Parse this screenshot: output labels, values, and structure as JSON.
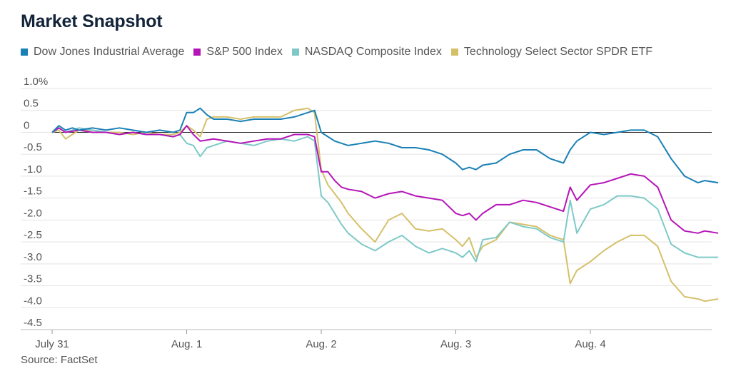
{
  "title": "Market Snapshot",
  "source": "Source: FactSet",
  "chart_data": {
    "type": "line",
    "ylim": [
      -4.5,
      1.0
    ],
    "y_ticks": [
      "1.0%",
      "0.5",
      "0",
      "-0.5",
      "-1.0",
      "-1.5",
      "-2.0",
      "-2.5",
      "-3.0",
      "-3.5",
      "-4.0",
      "-4.5"
    ],
    "y_tick_values": [
      1.0,
      0.5,
      0,
      -0.5,
      -1.0,
      -1.5,
      -2.0,
      -2.5,
      -3.0,
      -3.5,
      -4.0,
      -4.5
    ],
    "x_ticks": [
      "July 31",
      "Aug. 1",
      "Aug. 2",
      "Aug. 3",
      "Aug. 4"
    ],
    "x_range": [
      0,
      5
    ],
    "grid": "horizontal",
    "legend_position": "top-left",
    "series": [
      {
        "name": "Dow Jones Industrial Average",
        "color": "#1a80b6",
        "points": [
          [
            0,
            0
          ],
          [
            0.05,
            0.15
          ],
          [
            0.1,
            0.05
          ],
          [
            0.15,
            0.1
          ],
          [
            0.2,
            0.05
          ],
          [
            0.3,
            0.1
          ],
          [
            0.4,
            0.05
          ],
          [
            0.5,
            0.1
          ],
          [
            0.6,
            0.05
          ],
          [
            0.7,
            0.0
          ],
          [
            0.8,
            0.05
          ],
          [
            0.9,
            0.0
          ],
          [
            0.95,
            0.05
          ],
          [
            1.0,
            0.45
          ],
          [
            1.05,
            0.45
          ],
          [
            1.1,
            0.55
          ],
          [
            1.15,
            0.4
          ],
          [
            1.2,
            0.3
          ],
          [
            1.3,
            0.3
          ],
          [
            1.4,
            0.25
          ],
          [
            1.5,
            0.3
          ],
          [
            1.6,
            0.3
          ],
          [
            1.7,
            0.3
          ],
          [
            1.8,
            0.35
          ],
          [
            1.9,
            0.45
          ],
          [
            1.95,
            0.5
          ],
          [
            2.0,
            0.0
          ],
          [
            2.05,
            -0.1
          ],
          [
            2.1,
            -0.2
          ],
          [
            2.2,
            -0.3
          ],
          [
            2.3,
            -0.25
          ],
          [
            2.4,
            -0.2
          ],
          [
            2.5,
            -0.25
          ],
          [
            2.6,
            -0.35
          ],
          [
            2.7,
            -0.35
          ],
          [
            2.8,
            -0.4
          ],
          [
            2.9,
            -0.5
          ],
          [
            3.0,
            -0.7
          ],
          [
            3.05,
            -0.85
          ],
          [
            3.1,
            -0.8
          ],
          [
            3.15,
            -0.85
          ],
          [
            3.2,
            -0.75
          ],
          [
            3.3,
            -0.7
          ],
          [
            3.4,
            -0.5
          ],
          [
            3.5,
            -0.4
          ],
          [
            3.6,
            -0.4
          ],
          [
            3.7,
            -0.6
          ],
          [
            3.8,
            -0.7
          ],
          [
            3.85,
            -0.4
          ],
          [
            3.9,
            -0.2
          ],
          [
            4.0,
            0.0
          ],
          [
            4.1,
            -0.05
          ],
          [
            4.2,
            0.0
          ],
          [
            4.3,
            0.05
          ],
          [
            4.4,
            0.05
          ],
          [
            4.5,
            -0.1
          ],
          [
            4.6,
            -0.6
          ],
          [
            4.7,
            -1.0
          ],
          [
            4.8,
            -1.15
          ],
          [
            4.85,
            -1.1
          ],
          [
            4.95,
            -1.15
          ]
        ]
      },
      {
        "name": "S&P 500 Index",
        "color": "#b515b8",
        "points": [
          [
            0,
            0
          ],
          [
            0.05,
            0.1
          ],
          [
            0.1,
            0.0
          ],
          [
            0.2,
            0.05
          ],
          [
            0.3,
            0.0
          ],
          [
            0.4,
            0.0
          ],
          [
            0.5,
            -0.05
          ],
          [
            0.6,
            0.0
          ],
          [
            0.7,
            -0.05
          ],
          [
            0.8,
            -0.05
          ],
          [
            0.9,
            -0.1
          ],
          [
            0.95,
            -0.05
          ],
          [
            1.0,
            0.15
          ],
          [
            1.05,
            -0.05
          ],
          [
            1.1,
            -0.2
          ],
          [
            1.2,
            -0.15
          ],
          [
            1.3,
            -0.2
          ],
          [
            1.4,
            -0.25
          ],
          [
            1.5,
            -0.2
          ],
          [
            1.6,
            -0.15
          ],
          [
            1.7,
            -0.15
          ],
          [
            1.8,
            -0.05
          ],
          [
            1.9,
            -0.05
          ],
          [
            1.95,
            -0.1
          ],
          [
            2.0,
            -0.9
          ],
          [
            2.05,
            -0.9
          ],
          [
            2.1,
            -1.1
          ],
          [
            2.15,
            -1.25
          ],
          [
            2.2,
            -1.3
          ],
          [
            2.3,
            -1.35
          ],
          [
            2.4,
            -1.5
          ],
          [
            2.5,
            -1.4
          ],
          [
            2.6,
            -1.35
          ],
          [
            2.7,
            -1.45
          ],
          [
            2.8,
            -1.5
          ],
          [
            2.9,
            -1.55
          ],
          [
            3.0,
            -1.85
          ],
          [
            3.05,
            -1.9
          ],
          [
            3.1,
            -1.85
          ],
          [
            3.15,
            -2.0
          ],
          [
            3.2,
            -1.85
          ],
          [
            3.3,
            -1.65
          ],
          [
            3.4,
            -1.65
          ],
          [
            3.5,
            -1.55
          ],
          [
            3.6,
            -1.6
          ],
          [
            3.7,
            -1.7
          ],
          [
            3.8,
            -1.8
          ],
          [
            3.85,
            -1.25
          ],
          [
            3.9,
            -1.55
          ],
          [
            4.0,
            -1.2
          ],
          [
            4.1,
            -1.15
          ],
          [
            4.2,
            -1.05
          ],
          [
            4.3,
            -0.95
          ],
          [
            4.4,
            -1.0
          ],
          [
            4.5,
            -1.25
          ],
          [
            4.6,
            -2.0
          ],
          [
            4.7,
            -2.25
          ],
          [
            4.8,
            -2.3
          ],
          [
            4.85,
            -2.25
          ],
          [
            4.95,
            -2.3
          ]
        ]
      },
      {
        "name": "NASDAQ Composite Index",
        "color": "#7ec9c8",
        "points": [
          [
            0,
            0
          ],
          [
            0.05,
            0.1
          ],
          [
            0.1,
            0.0
          ],
          [
            0.2,
            0.1
          ],
          [
            0.3,
            0.05
          ],
          [
            0.4,
            0.0
          ],
          [
            0.5,
            -0.05
          ],
          [
            0.6,
            0.0
          ],
          [
            0.7,
            -0.05
          ],
          [
            0.8,
            -0.05
          ],
          [
            0.9,
            -0.1
          ],
          [
            0.95,
            -0.05
          ],
          [
            1.0,
            -0.25
          ],
          [
            1.05,
            -0.3
          ],
          [
            1.1,
            -0.55
          ],
          [
            1.15,
            -0.35
          ],
          [
            1.2,
            -0.3
          ],
          [
            1.3,
            -0.2
          ],
          [
            1.4,
            -0.25
          ],
          [
            1.5,
            -0.3
          ],
          [
            1.6,
            -0.2
          ],
          [
            1.7,
            -0.15
          ],
          [
            1.8,
            -0.2
          ],
          [
            1.9,
            -0.1
          ],
          [
            1.95,
            -0.2
          ],
          [
            2.0,
            -1.45
          ],
          [
            2.05,
            -1.6
          ],
          [
            2.1,
            -1.85
          ],
          [
            2.15,
            -2.1
          ],
          [
            2.2,
            -2.3
          ],
          [
            2.3,
            -2.55
          ],
          [
            2.4,
            -2.7
          ],
          [
            2.5,
            -2.5
          ],
          [
            2.6,
            -2.35
          ],
          [
            2.7,
            -2.6
          ],
          [
            2.8,
            -2.75
          ],
          [
            2.9,
            -2.65
          ],
          [
            3.0,
            -2.75
          ],
          [
            3.05,
            -2.85
          ],
          [
            3.1,
            -2.7
          ],
          [
            3.15,
            -2.95
          ],
          [
            3.2,
            -2.45
          ],
          [
            3.3,
            -2.4
          ],
          [
            3.4,
            -2.05
          ],
          [
            3.5,
            -2.15
          ],
          [
            3.6,
            -2.2
          ],
          [
            3.7,
            -2.4
          ],
          [
            3.8,
            -2.5
          ],
          [
            3.85,
            -1.55
          ],
          [
            3.9,
            -2.3
          ],
          [
            4.0,
            -1.75
          ],
          [
            4.1,
            -1.65
          ],
          [
            4.2,
            -1.45
          ],
          [
            4.3,
            -1.45
          ],
          [
            4.4,
            -1.5
          ],
          [
            4.5,
            -1.75
          ],
          [
            4.6,
            -2.55
          ],
          [
            4.7,
            -2.75
          ],
          [
            4.8,
            -2.85
          ],
          [
            4.85,
            -2.85
          ],
          [
            4.95,
            -2.85
          ]
        ]
      },
      {
        "name": "Technology Select Sector SPDR ETF",
        "color": "#d5c06a",
        "points": [
          [
            0,
            0
          ],
          [
            0.05,
            0.05
          ],
          [
            0.1,
            -0.15
          ],
          [
            0.2,
            0.05
          ],
          [
            0.3,
            0.05
          ],
          [
            0.4,
            0.0
          ],
          [
            0.5,
            0.0
          ],
          [
            0.6,
            -0.05
          ],
          [
            0.7,
            0.0
          ],
          [
            0.8,
            -0.05
          ],
          [
            0.9,
            -0.05
          ],
          [
            0.95,
            0.0
          ],
          [
            1.0,
            0.15
          ],
          [
            1.05,
            0.05
          ],
          [
            1.1,
            -0.1
          ],
          [
            1.15,
            0.3
          ],
          [
            1.2,
            0.35
          ],
          [
            1.3,
            0.35
          ],
          [
            1.4,
            0.3
          ],
          [
            1.5,
            0.35
          ],
          [
            1.6,
            0.35
          ],
          [
            1.7,
            0.35
          ],
          [
            1.8,
            0.5
          ],
          [
            1.9,
            0.55
          ],
          [
            1.95,
            0.45
          ],
          [
            2.0,
            -0.85
          ],
          [
            2.05,
            -1.2
          ],
          [
            2.1,
            -1.4
          ],
          [
            2.15,
            -1.6
          ],
          [
            2.2,
            -1.85
          ],
          [
            2.3,
            -2.2
          ],
          [
            2.4,
            -2.5
          ],
          [
            2.5,
            -2.0
          ],
          [
            2.6,
            -1.85
          ],
          [
            2.7,
            -2.2
          ],
          [
            2.8,
            -2.25
          ],
          [
            2.9,
            -2.2
          ],
          [
            3.0,
            -2.45
          ],
          [
            3.05,
            -2.6
          ],
          [
            3.1,
            -2.4
          ],
          [
            3.15,
            -2.85
          ],
          [
            3.2,
            -2.6
          ],
          [
            3.3,
            -2.45
          ],
          [
            3.4,
            -2.05
          ],
          [
            3.5,
            -2.1
          ],
          [
            3.6,
            -2.15
          ],
          [
            3.7,
            -2.35
          ],
          [
            3.8,
            -2.45
          ],
          [
            3.85,
            -3.45
          ],
          [
            3.9,
            -3.15
          ],
          [
            4.0,
            -2.95
          ],
          [
            4.1,
            -2.7
          ],
          [
            4.2,
            -2.5
          ],
          [
            4.3,
            -2.35
          ],
          [
            4.4,
            -2.35
          ],
          [
            4.5,
            -2.6
          ],
          [
            4.6,
            -3.4
          ],
          [
            4.7,
            -3.75
          ],
          [
            4.8,
            -3.8
          ],
          [
            4.85,
            -3.85
          ],
          [
            4.95,
            -3.8
          ]
        ]
      }
    ]
  }
}
